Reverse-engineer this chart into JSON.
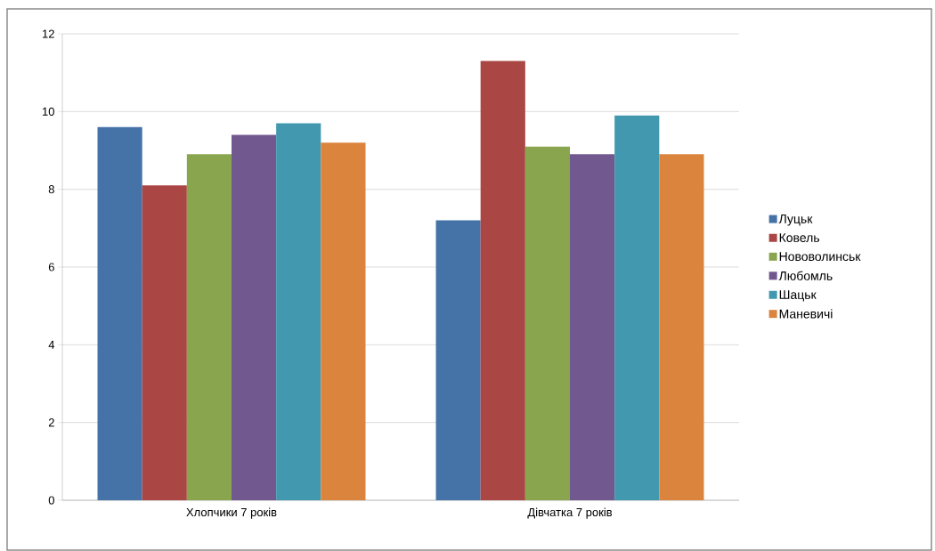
{
  "chart_data": {
    "type": "bar",
    "categories": [
      "Хлопчики 7 років",
      "Дівчатка 7 років"
    ],
    "series": [
      {
        "name": "Луцьк",
        "color": "#4572a7",
        "values": [
          9.6,
          7.2
        ]
      },
      {
        "name": "Ковель",
        "color": "#aa4643",
        "values": [
          8.1,
          11.3
        ]
      },
      {
        "name": "Нововолинськ",
        "color": "#89a54e",
        "values": [
          8.9,
          9.1
        ]
      },
      {
        "name": "Любомль",
        "color": "#71588f",
        "values": [
          9.4,
          8.9
        ]
      },
      {
        "name": "Шацьк",
        "color": "#4198af",
        "values": [
          9.7,
          9.9
        ]
      },
      {
        "name": "Маневичі",
        "color": "#db843d",
        "values": [
          9.2,
          8.9
        ]
      }
    ],
    "ylim": [
      0,
      12
    ],
    "yticks": [
      0,
      2,
      4,
      6,
      8,
      10,
      12
    ],
    "grid": "y",
    "legend": "right"
  }
}
